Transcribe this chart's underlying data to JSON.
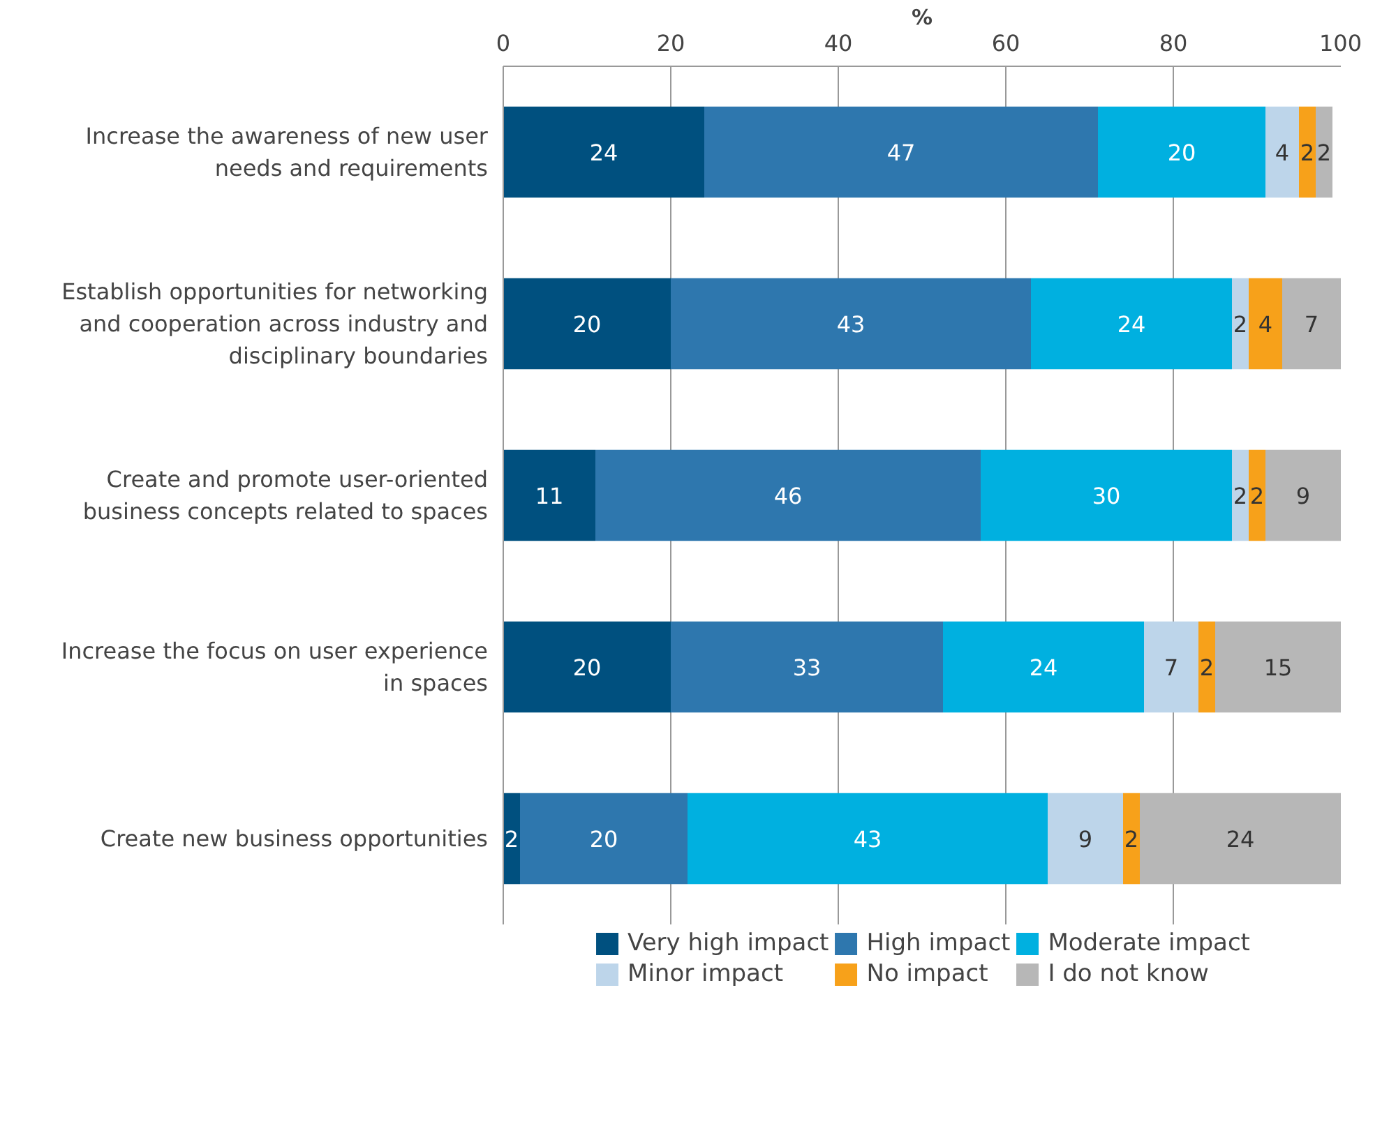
{
  "chart_data": {
    "type": "bar",
    "orientation": "horizontal",
    "stacked": true,
    "xlabel": "%",
    "categories": [
      "Increase the awareness of new user needs and requirements",
      "Establish opportunities for networking and cooperation across industry and disciplinary boundaries",
      "Create and promote user-oriented business concepts related to spaces",
      "Increase the focus on user experience in spaces",
      "Create new business opportunities"
    ],
    "series": [
      {
        "name": "Very high impact",
        "color": "#00507f",
        "values": [
          24,
          20,
          11,
          20,
          2
        ],
        "value_labels": [
          "24",
          "20",
          "11",
          "20",
          "2"
        ]
      },
      {
        "name": "High impact",
        "color": "#2e77ae",
        "values": [
          47,
          43,
          46,
          32.5,
          20
        ],
        "value_labels": [
          "47",
          "43",
          "46",
          "33",
          "20"
        ]
      },
      {
        "name": "Moderate impact",
        "color": "#00b0e0",
        "values": [
          20,
          24,
          30,
          24,
          43
        ]
      },
      {
        "name": "Minor impact",
        "color": "#bdd5ea",
        "values": [
          4,
          2,
          2,
          6.5,
          9
        ],
        "value_labels": [
          "4",
          "2",
          "2",
          "7",
          "9"
        ]
      },
      {
        "name": "No impact",
        "color": "#f7a11a",
        "values": [
          2,
          4,
          2,
          2,
          2
        ]
      },
      {
        "name": "I do not know",
        "color": "#b7b7b7",
        "values": [
          2,
          7,
          9,
          15,
          24
        ]
      }
    ],
    "xlim": [
      0,
      100
    ],
    "xticks": [
      0,
      20,
      40,
      60,
      80,
      100
    ],
    "grid": "x",
    "legend": "bottom",
    "data_labels": true
  }
}
